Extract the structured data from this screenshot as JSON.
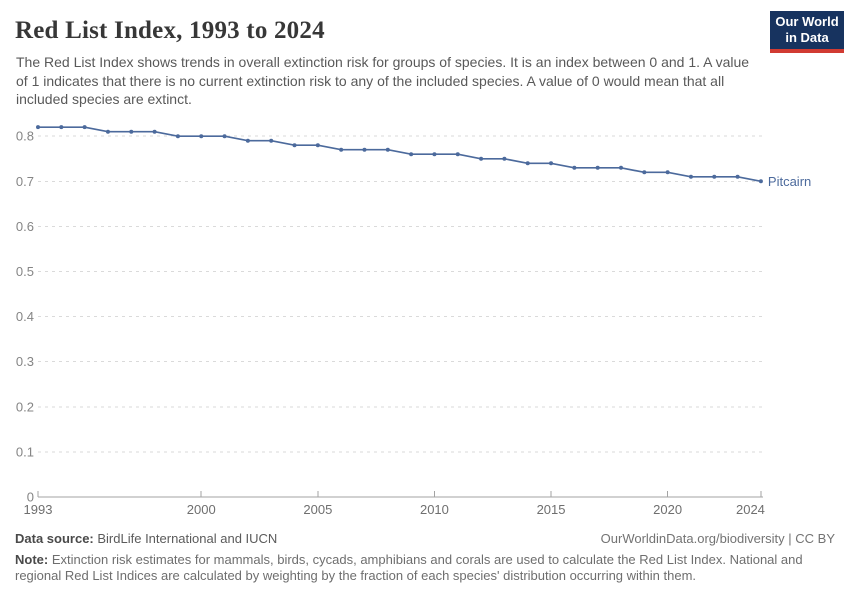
{
  "header": {
    "title": "Red List Index, 1993 to 2024",
    "subtitle": "The Red List Index shows trends in overall extinction risk for groups of species. It is an index between 0 and 1. A value of 1 indicates that there is no current extinction risk to any of the included species. A value of 0 would mean that all included species are extinct.",
    "logo": {
      "line1": "Our World",
      "line2": "in Data"
    }
  },
  "chart_data": {
    "type": "line",
    "title": "Red List Index, 1993 to 2024",
    "xlabel": "",
    "ylabel": "",
    "x": [
      1993,
      1994,
      1995,
      1996,
      1997,
      1998,
      1999,
      2000,
      2001,
      2002,
      2003,
      2004,
      2005,
      2006,
      2007,
      2008,
      2009,
      2010,
      2011,
      2012,
      2013,
      2014,
      2015,
      2016,
      2017,
      2018,
      2019,
      2020,
      2021,
      2022,
      2023,
      2024
    ],
    "series": [
      {
        "name": "Pitcairn",
        "color": "#4C6A9C",
        "values": [
          0.82,
          0.82,
          0.82,
          0.81,
          0.81,
          0.81,
          0.8,
          0.8,
          0.8,
          0.79,
          0.79,
          0.78,
          0.78,
          0.77,
          0.77,
          0.77,
          0.76,
          0.76,
          0.76,
          0.75,
          0.75,
          0.74,
          0.74,
          0.73,
          0.73,
          0.73,
          0.72,
          0.72,
          0.71,
          0.71,
          0.71,
          0.7
        ]
      }
    ],
    "ylim": [
      0,
      0.8
    ],
    "yticks": [
      0,
      0.1,
      0.2,
      0.3,
      0.4,
      0.5,
      0.6,
      0.7,
      0.8
    ],
    "xticks": [
      1993,
      2000,
      2005,
      2010,
      2015,
      2020,
      2024
    ],
    "grid": "horizontal-dashed",
    "legend": "end-of-line-label"
  },
  "footer": {
    "data_source_label": "Data source:",
    "data_source_value": "BirdLife International and IUCN",
    "credit": "OurWorldinData.org/biodiversity | CC BY",
    "note_label": "Note:",
    "note_text": "Extinction risk estimates for mammals, birds, cycads, amphibians and corals are used to calculate the Red List Index. National and regional Red List Indices are calculated by weighting by the fraction of each species' distribution occurring within them."
  },
  "colors": {
    "line": "#4C6A9C",
    "logo_navy": "#17335f",
    "logo_red": "#d13b32",
    "gridline": "#dadada",
    "axis": "#a3a3a3"
  }
}
